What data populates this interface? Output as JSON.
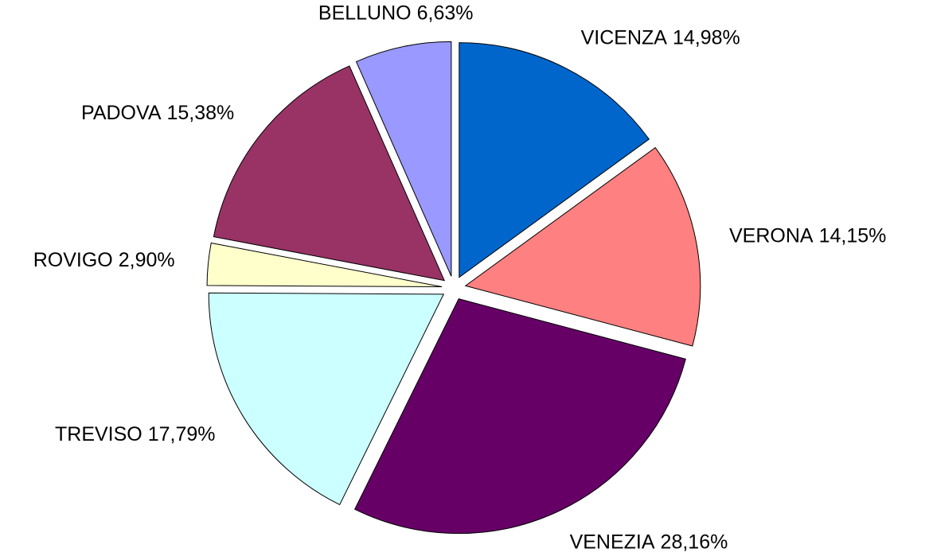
{
  "chart_data": {
    "type": "pie",
    "categories": [
      "VICENZA",
      "VERONA",
      "VENEZIA",
      "TREVISO",
      "ROVIGO",
      "PADOVA",
      "BELLUNO"
    ],
    "values": [
      14.98,
      14.15,
      28.16,
      17.79,
      2.9,
      15.38,
      6.63
    ],
    "value_labels": [
      "14,98%",
      "14,15%",
      "28,16%",
      "17,79%",
      "2,90%",
      "15,38%",
      "6,63%"
    ],
    "colors": [
      "#0066cc",
      "#ff8080",
      "#660066",
      "#ccffff",
      "#ffffcc",
      "#993366",
      "#9999ff"
    ]
  }
}
